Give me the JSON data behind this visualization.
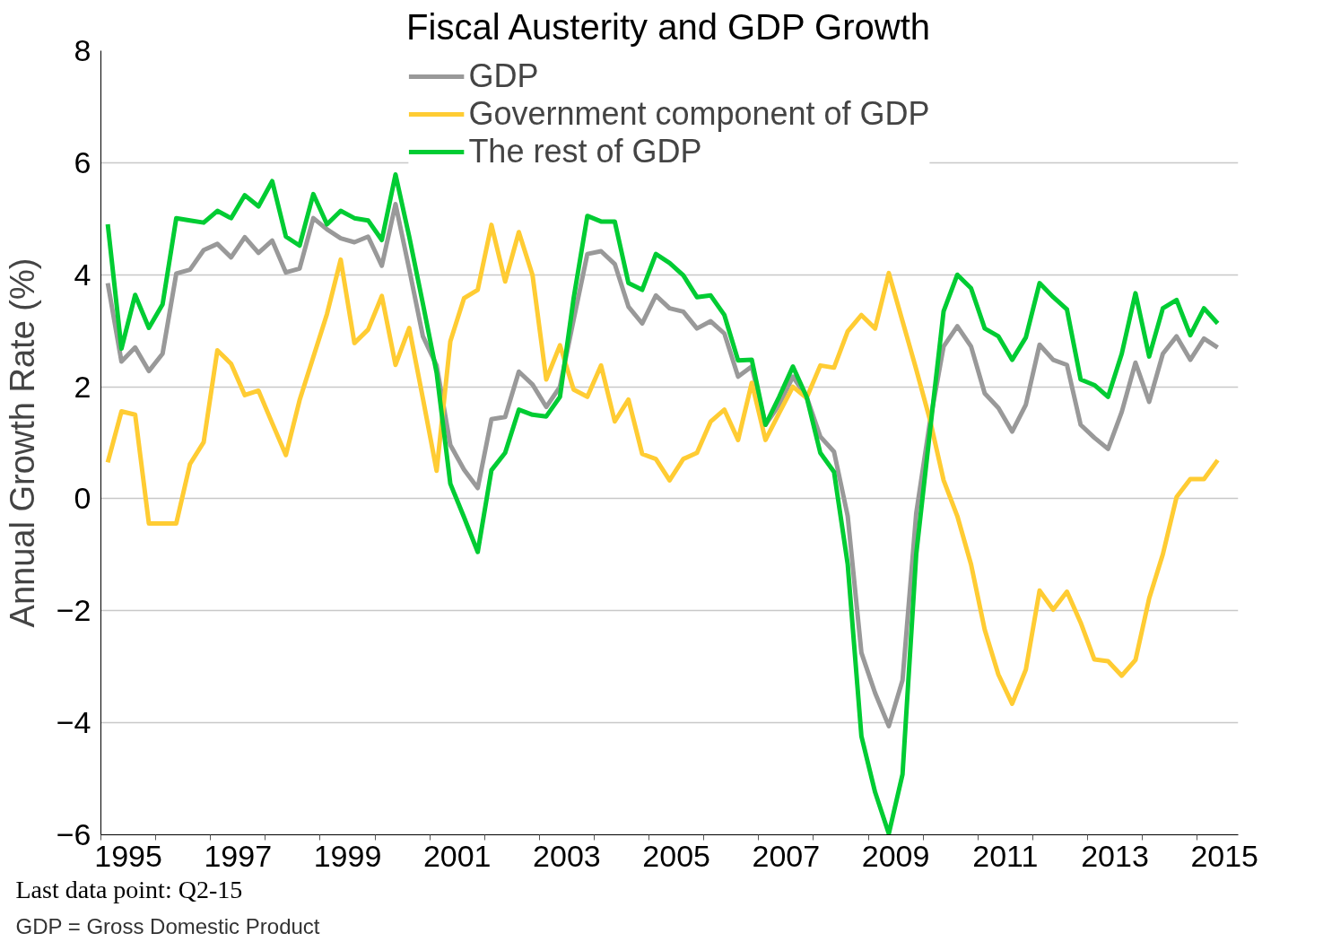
{
  "chart_data": {
    "type": "line",
    "title": "Fiscal Austerity and GDP Growth",
    "ylabel": "Annual Growth Rate (%)",
    "x": [
      1995.125,
      1995.375,
      1995.625,
      1995.875,
      1996.125,
      1996.375,
      1996.625,
      1996.875,
      1997.125,
      1997.375,
      1997.625,
      1997.875,
      1998.125,
      1998.375,
      1998.625,
      1998.875,
      1999.125,
      1999.375,
      1999.625,
      1999.875,
      2000.125,
      2000.375,
      2000.625,
      2000.875,
      2001.125,
      2001.375,
      2001.625,
      2001.875,
      2002.125,
      2002.375,
      2002.625,
      2002.875,
      2003.125,
      2003.375,
      2003.625,
      2003.875,
      2004.125,
      2004.375,
      2004.625,
      2004.875,
      2005.125,
      2005.375,
      2005.625,
      2005.875,
      2006.125,
      2006.375,
      2006.625,
      2006.875,
      2007.125,
      2007.375,
      2007.625,
      2007.875,
      2008.125,
      2008.375,
      2008.625,
      2008.875,
      2009.125,
      2009.375,
      2009.625,
      2009.875,
      2010.125,
      2010.375,
      2010.625,
      2010.875,
      2011.125,
      2011.375,
      2011.625,
      2011.875,
      2012.125,
      2012.375,
      2012.625,
      2012.875,
      2013.125,
      2013.375,
      2013.625,
      2013.875,
      2014.125,
      2014.375,
      2014.625,
      2014.875,
      2015.125,
      2015.375
    ],
    "series": [
      {
        "name": "GDP",
        "color": "#999999",
        "values": [
          3.85,
          2.45,
          2.7,
          2.28,
          2.59,
          4.02,
          4.09,
          4.44,
          4.55,
          4.31,
          4.67,
          4.39,
          4.61,
          4.04,
          4.11,
          5.01,
          4.81,
          4.65,
          4.58,
          4.68,
          4.16,
          5.26,
          4.1,
          2.9,
          2.38,
          0.96,
          0.52,
          0.19,
          1.42,
          1.46,
          2.27,
          2.04,
          1.64,
          2.0,
          3.2,
          4.37,
          4.42,
          4.19,
          3.43,
          3.13,
          3.63,
          3.4,
          3.34,
          3.04,
          3.17,
          2.95,
          2.18,
          2.36,
          1.32,
          1.68,
          2.18,
          1.82,
          1.11,
          0.84,
          -0.31,
          -2.75,
          -3.47,
          -4.06,
          -3.24,
          -0.26,
          1.37,
          2.72,
          3.08,
          2.72,
          1.88,
          1.62,
          1.2,
          1.68,
          2.75,
          2.48,
          2.39,
          1.32,
          1.09,
          0.89,
          1.55,
          2.43,
          1.73,
          2.59,
          2.9,
          2.48,
          2.86,
          2.7
        ]
      },
      {
        "name": "Government component of GDP",
        "color": "#ffcc33",
        "values": [
          0.65,
          1.56,
          1.5,
          -0.44,
          -0.44,
          -0.44,
          0.62,
          1.01,
          2.65,
          2.41,
          1.85,
          1.93,
          1.35,
          0.78,
          1.76,
          2.53,
          3.3,
          4.27,
          2.78,
          3.02,
          3.62,
          2.39,
          3.05,
          1.79,
          0.5,
          2.81,
          3.58,
          3.73,
          4.89,
          3.88,
          4.76,
          3.99,
          2.13,
          2.74,
          1.95,
          1.82,
          2.38,
          1.38,
          1.77,
          0.8,
          0.71,
          0.33,
          0.71,
          0.82,
          1.38,
          1.59,
          1.05,
          2.07,
          1.05,
          1.53,
          2.0,
          1.8,
          2.38,
          2.34,
          2.99,
          3.28,
          3.04,
          4.03,
          3.17,
          2.31,
          1.41,
          0.33,
          -0.31,
          -1.17,
          -2.34,
          -3.14,
          -3.66,
          -3.05,
          -1.64,
          -1.98,
          -1.66,
          -2.21,
          -2.87,
          -2.9,
          -3.16,
          -2.88,
          -1.78,
          -0.99,
          0.03,
          0.35,
          0.35,
          0.69
        ]
      },
      {
        "name": "The rest of GDP",
        "color": "#00cc33",
        "values": [
          4.9,
          2.68,
          3.64,
          3.05,
          3.47,
          5.01,
          4.97,
          4.93,
          5.14,
          5.01,
          5.42,
          5.22,
          5.67,
          4.68,
          4.52,
          5.44,
          4.9,
          5.14,
          5.01,
          4.97,
          4.62,
          5.79,
          4.68,
          3.48,
          2.25,
          0.27,
          -0.33,
          -0.95,
          0.51,
          0.82,
          1.59,
          1.5,
          1.47,
          1.82,
          3.58,
          5.05,
          4.95,
          4.95,
          3.85,
          3.73,
          4.37,
          4.21,
          3.99,
          3.6,
          3.63,
          3.28,
          2.47,
          2.48,
          1.32,
          1.82,
          2.36,
          1.82,
          0.82,
          0.48,
          -1.17,
          -4.24,
          -5.24,
          -5.98,
          -4.92,
          -0.99,
          1.2,
          3.35,
          4.0,
          3.76,
          3.04,
          2.9,
          2.48,
          2.88,
          3.85,
          3.6,
          3.38,
          2.13,
          2.03,
          1.82,
          2.59,
          3.67,
          2.54,
          3.4,
          3.55,
          2.92,
          3.4,
          3.13
        ]
      }
    ],
    "xlim": [
      1995,
      2015.75
    ],
    "xticks": [
      {
        "value": 1995,
        "label": null
      },
      {
        "value": 1995.5,
        "label": "1995"
      },
      {
        "value": 1996,
        "label": null
      },
      {
        "value": 1997,
        "label": null
      },
      {
        "value": 1997.5,
        "label": "1997"
      },
      {
        "value": 1998,
        "label": null
      },
      {
        "value": 1999,
        "label": null
      },
      {
        "value": 1999.5,
        "label": "1999"
      },
      {
        "value": 2000,
        "label": null
      },
      {
        "value": 2001,
        "label": null
      },
      {
        "value": 2001.5,
        "label": "2001"
      },
      {
        "value": 2002,
        "label": null
      },
      {
        "value": 2003,
        "label": null
      },
      {
        "value": 2003.5,
        "label": "2003"
      },
      {
        "value": 2004,
        "label": null
      },
      {
        "value": 2005,
        "label": null
      },
      {
        "value": 2005.5,
        "label": "2005"
      },
      {
        "value": 2006,
        "label": null
      },
      {
        "value": 2007,
        "label": null
      },
      {
        "value": 2007.5,
        "label": "2007"
      },
      {
        "value": 2008,
        "label": null
      },
      {
        "value": 2009,
        "label": null
      },
      {
        "value": 2009.5,
        "label": "2009"
      },
      {
        "value": 2010,
        "label": null
      },
      {
        "value": 2011,
        "label": null
      },
      {
        "value": 2011.5,
        "label": "2011"
      },
      {
        "value": 2012,
        "label": null
      },
      {
        "value": 2013,
        "label": null
      },
      {
        "value": 2013.5,
        "label": "2013"
      },
      {
        "value": 2014,
        "label": null
      },
      {
        "value": 2015,
        "label": null
      },
      {
        "value": 2015.5,
        "label": "2015"
      }
    ],
    "ylim": [
      -6,
      8
    ],
    "yticks": [
      -6,
      -4,
      -2,
      0,
      2,
      4,
      6,
      8
    ],
    "grid": "y",
    "legend": "top",
    "marker": "none",
    "line_style": "solid",
    "annotations": [
      "Last data point: Q2-15",
      "GDP = Gross Domestic Product"
    ]
  }
}
